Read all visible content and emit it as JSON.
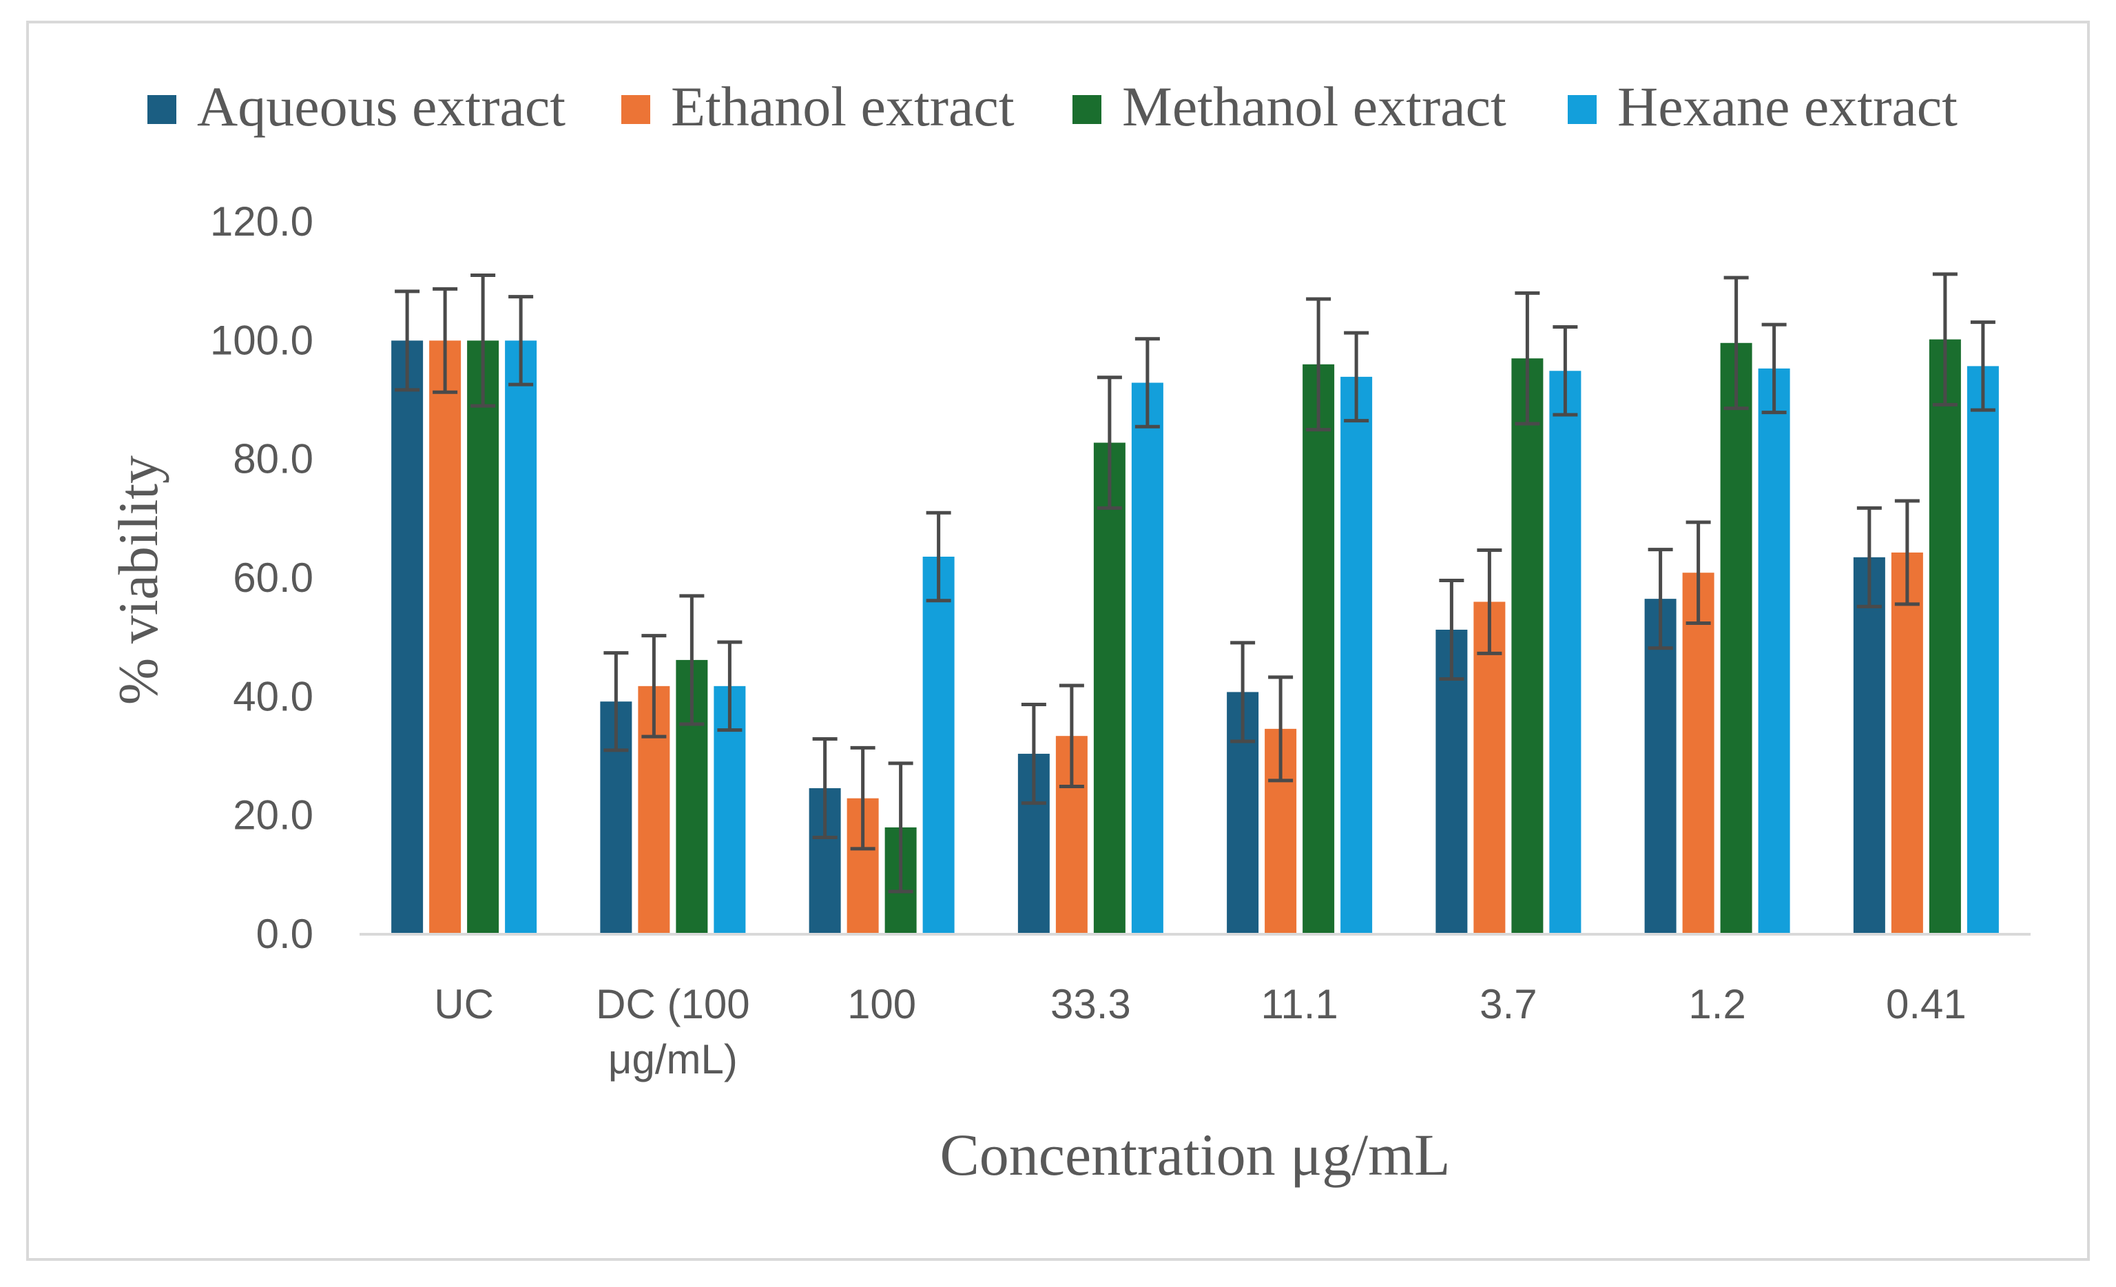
{
  "chart_data": {
    "type": "bar",
    "title": "",
    "xlabel": "Concentration μg/mL",
    "ylabel": "% viability",
    "ylim": [
      0,
      120
    ],
    "yticks": [
      "0.0",
      "20.0",
      "40.0",
      "60.0",
      "80.0",
      "100.0",
      "120.0"
    ],
    "grid": false,
    "legend_position": "top",
    "categories": [
      "UC",
      "DC (100 μg/mL)",
      "100",
      "33.3",
      "11.1",
      "3.7",
      "1.2",
      "0.41"
    ],
    "category_lines": [
      [
        "UC"
      ],
      [
        "DC (100",
        "μg/mL)"
      ],
      [
        "100"
      ],
      [
        "33.3"
      ],
      [
        "11.1"
      ],
      [
        "3.7"
      ],
      [
        "1.2"
      ],
      [
        "0.41"
      ]
    ],
    "series": [
      {
        "name": "Aqueous extract",
        "color": "#1b5e82",
        "values": [
          100.0,
          39.2,
          24.6,
          30.4,
          40.8,
          51.3,
          56.5,
          63.5
        ],
        "errors": [
          8.3,
          8.2,
          8.3,
          8.3,
          8.3,
          8.3,
          8.3,
          8.3
        ]
      },
      {
        "name": "Ethanol extract",
        "color": "#ec7436",
        "values": [
          100.0,
          41.8,
          22.9,
          33.4,
          34.6,
          56.0,
          60.9,
          64.3
        ],
        "errors": [
          8.7,
          8.5,
          8.5,
          8.5,
          8.7,
          8.7,
          8.5,
          8.7
        ]
      },
      {
        "name": "Methanol extract",
        "color": "#1a6e2e",
        "values": [
          100.0,
          46.2,
          18.0,
          82.8,
          96.0,
          97.0,
          99.6,
          100.2
        ],
        "errors": [
          11.0,
          10.8,
          10.8,
          11.0,
          11.0,
          11.0,
          11.0,
          11.0
        ]
      },
      {
        "name": "Hexane extract",
        "color": "#139fdb",
        "values": [
          100.0,
          41.8,
          63.6,
          92.9,
          93.9,
          94.9,
          95.3,
          95.7
        ],
        "errors": [
          7.4,
          7.4,
          7.4,
          7.4,
          7.4,
          7.4,
          7.4,
          7.4
        ]
      }
    ],
    "error_bar_color": "#4a4a4a",
    "axis_color": "#d9d9d9",
    "text_color": "#595959"
  }
}
